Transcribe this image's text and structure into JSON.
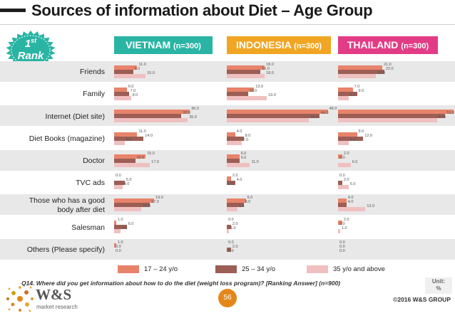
{
  "header": {
    "title": "Sources of information about Diet – Age Group"
  },
  "rank_badge": {
    "line1": "1",
    "sup": "st",
    "line2": "Rank"
  },
  "countries": [
    {
      "name": "VIETNAM",
      "n": "(n=300)",
      "color": "#2ab4a4"
    },
    {
      "name": "INDONESIA",
      "n": "(n=300)",
      "color": "#f0a623"
    },
    {
      "name": "THAILAND",
      "n": "(n=300)",
      "color": "#e23c86"
    }
  ],
  "chart_data": {
    "type": "bar",
    "orientation": "horizontal",
    "title": "Sources of information about Diet – Age Group",
    "unit": "%",
    "categories": [
      "Friends",
      "Family",
      "Internet (Diet site)",
      "Diet Books (magazine)",
      "Doctor",
      "TVC ads",
      "Those who has a good body after diet",
      "Salesman",
      "Others (Please specify)"
    ],
    "category_lines": [
      [
        "Friends"
      ],
      [
        "Family"
      ],
      [
        "Internet (Diet site)"
      ],
      [
        "Diet Books (magazine)"
      ],
      [
        "Doctor"
      ],
      [
        "TVC ads"
      ],
      [
        "Those who has a good",
        "body after diet"
      ],
      [
        "Salesman"
      ],
      [
        "Others (Please specify)"
      ]
    ],
    "series_colors": [
      "#e8836a",
      "#9c5e55",
      "#f0c0c0"
    ],
    "legend": [
      "17 – 24 y/o",
      "25 – 34 y/o",
      "35 y/o and above"
    ],
    "panels": [
      {
        "country": "VIETNAM",
        "series": [
          {
            "name": "17 – 24 y/o",
            "values": [
              11.0,
              6.0,
              36.0,
              11.0,
              15.0,
              0.0,
              19.0,
              1.0,
              1.0
            ],
            "labels": [
              "11.0",
              "6.0",
              "36.0",
              "11.0",
              "15.0",
              "0.0",
              "19.0",
              "1.0",
              "1.0"
            ]
          },
          {
            "name": "25 – 34 y/o",
            "values": [
              9.0,
              7.0,
              32.0,
              14.0,
              10.0,
              5.0,
              17.0,
              6.0,
              0.0
            ],
            "labels": [
              "9.0",
              "7.0",
              "32.0",
              "14.0",
              "10.0",
              "5.0",
              "17.0",
              "6.0",
              "0.0"
            ]
          },
          {
            "name": "35 y/o and above",
            "values": [
              15.0,
              8.0,
              35.0,
              5.0,
              17.0,
              4.0,
              13.0,
              3.0,
              0.0
            ],
            "labels": [
              "15.0",
              "8.0",
              "35.0",
              "5.0",
              "17.0",
              "4.0",
              "13.0",
              "3.0",
              "0.0"
            ]
          }
        ]
      },
      {
        "country": "INDONESIA",
        "series": [
          {
            "name": "17 – 24 y/o",
            "values": [
              18.0,
              13.0,
              48.0,
              4.0,
              6.0,
              2.0,
              9.0,
              0.0,
              0.0
            ],
            "labels": [
              "18.0",
              "13.0",
              "48.0",
              "4.0",
              "6.0",
              "2.0",
              "9.0",
              "0.0",
              "0.0"
            ]
          },
          {
            "name": "25 – 34 y/o",
            "values": [
              16.0,
              10.0,
              44.0,
              8.0,
              6.0,
              4.0,
              8.0,
              2.0,
              2.0
            ],
            "labels": [
              "16.0",
              "10.0",
              "44.0",
              "8.0",
              "6.0",
              "4.0",
              "8.0",
              "2.0",
              "2.0"
            ]
          },
          {
            "name": "35 y/o and above",
            "values": [
              18.0,
              19.0,
              39.0,
              7.0,
              11.0,
              0.0,
              5.0,
              1.0,
              0.0
            ],
            "labels": [
              "18.0",
              "19.0",
              "39.0",
              "7.0",
              "11.0",
              "0.0",
              "5.0",
              "1.0",
              "0.0"
            ]
          }
        ]
      },
      {
        "country": "THAILAND",
        "series": [
          {
            "name": "17 – 24 y/o",
            "values": [
              21.0,
              7.0,
              55.0,
              9.0,
              2.0,
              0.0,
              4.0,
              2.0,
              0.0
            ],
            "labels": [
              "21.0",
              "7.0",
              "55.0",
              "9.0",
              "2.0",
              "0.0",
              "4.0",
              "2.0",
              "0.0"
            ]
          },
          {
            "name": "25 – 34 y/o",
            "values": [
              22.0,
              9.0,
              51.0,
              12.0,
              0.0,
              2.0,
              4.0,
              0.0,
              0.0
            ],
            "labels": [
              "22.0",
              "9.0",
              "51.0",
              "12.0",
              "0.0",
              "2.0",
              "4.0",
              "0.0",
              "0.0"
            ]
          },
          {
            "name": "35 y/o and above",
            "values": [
              18.0,
              5.0,
              47.0,
              5.0,
              6.0,
              5.0,
              13.0,
              1.0,
              0.0
            ],
            "labels": [
              "18.0",
              "5.0",
              "47.0",
              "5.0",
              "6.0",
              "5.0",
              "13.0",
              "1.0",
              "0.0"
            ]
          }
        ]
      }
    ]
  },
  "footer": {
    "question": "Q14. Where did you get information about how to do the diet (weight loss program)? [Ranking Answer] (n=900)",
    "unit_label": "Unit:",
    "unit_value": "%",
    "page_number": "56",
    "copyright": "©2016 W&S GROUP",
    "logo_text": "W&S",
    "logo_sub": "market research"
  }
}
